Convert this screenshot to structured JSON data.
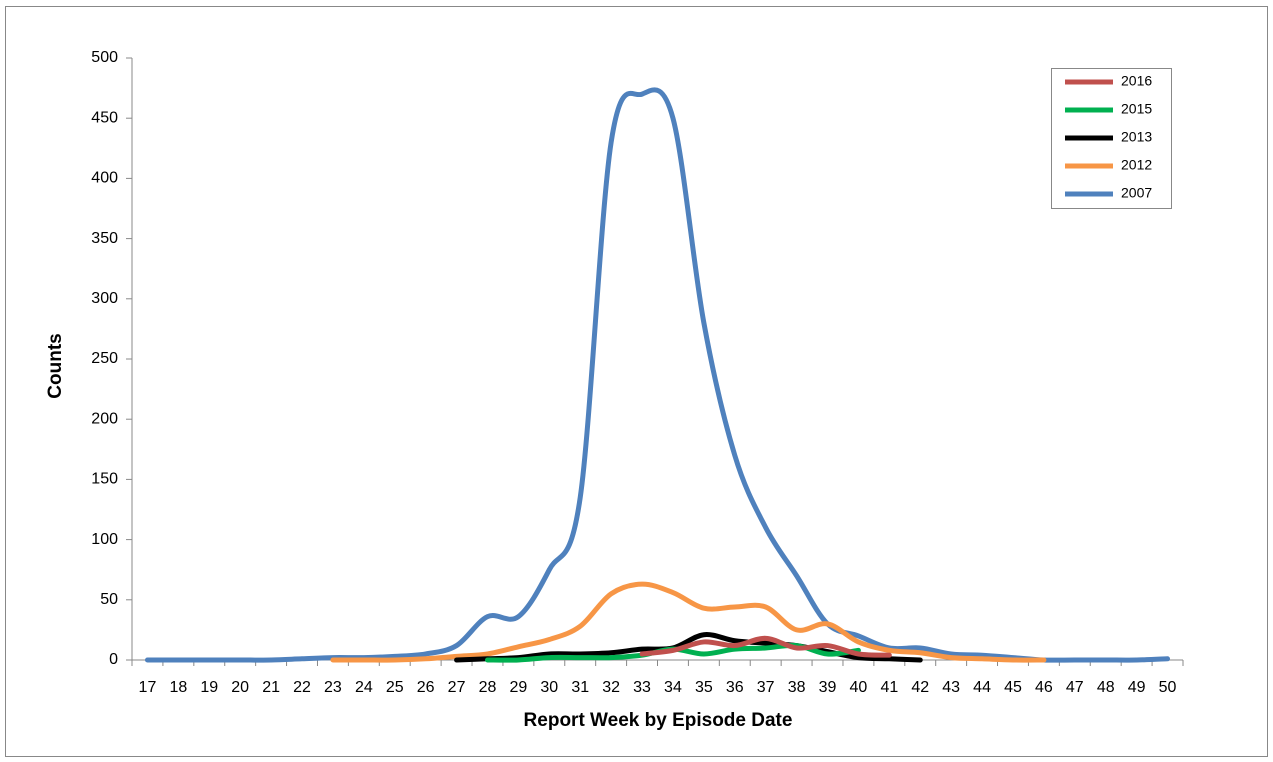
{
  "chart_data": {
    "type": "line",
    "x_label": "Report Week by Episode Date",
    "y_label": "Counts",
    "categories": [
      "17",
      "18",
      "19",
      "20",
      "21",
      "22",
      "23",
      "24",
      "25",
      "26",
      "27",
      "28",
      "29",
      "30",
      "31",
      "32",
      "33",
      "34",
      "35",
      "36",
      "37",
      "38",
      "39",
      "40",
      "41",
      "42",
      "43",
      "44",
      "45",
      "46",
      "47",
      "48",
      "49",
      "50"
    ],
    "series": [
      {
        "name": "2016",
        "color": "#c0504d",
        "values": [
          null,
          null,
          null,
          null,
          null,
          null,
          null,
          null,
          null,
          null,
          null,
          null,
          null,
          null,
          null,
          null,
          5,
          8,
          15,
          12,
          18,
          10,
          12,
          5,
          4,
          null,
          null,
          null,
          null,
          null,
          null,
          null,
          null,
          null
        ]
      },
      {
        "name": "2015",
        "color": "#00b050",
        "values": [
          null,
          null,
          null,
          null,
          null,
          null,
          null,
          null,
          null,
          null,
          null,
          0,
          0,
          2,
          2,
          2,
          4,
          9,
          5,
          9,
          10,
          12,
          5,
          8,
          null,
          null,
          null,
          null,
          null,
          null,
          null,
          null,
          null,
          null
        ]
      },
      {
        "name": "2013",
        "color": "#000000",
        "values": [
          null,
          null,
          null,
          null,
          null,
          null,
          null,
          null,
          null,
          null,
          0,
          1,
          2,
          5,
          5,
          6,
          9,
          10,
          21,
          16,
          14,
          12,
          7,
          2,
          1,
          0,
          null,
          null,
          null,
          null,
          null,
          null,
          null,
          null
        ]
      },
      {
        "name": "2012",
        "color": "#f79646",
        "values": [
          null,
          null,
          null,
          null,
          null,
          null,
          0,
          0,
          0,
          1,
          3,
          5,
          11,
          17,
          28,
          55,
          63,
          56,
          43,
          44,
          44,
          25,
          30,
          15,
          8,
          6,
          2,
          1,
          0,
          0,
          null,
          null,
          null,
          null
        ]
      },
      {
        "name": "2007",
        "color": "#4f81bd",
        "values": [
          0,
          0,
          0,
          0,
          0,
          1,
          2,
          2,
          3,
          5,
          12,
          36,
          36,
          75,
          135,
          430,
          470,
          450,
          280,
          170,
          110,
          70,
          30,
          20,
          10,
          10,
          5,
          4,
          2,
          0,
          0,
          0,
          0,
          1
        ]
      }
    ],
    "ylim": [
      0,
      500
    ],
    "yticks": [
      0,
      50,
      100,
      150,
      200,
      250,
      300,
      350,
      400,
      450,
      500
    ],
    "grid": false,
    "legend": "upper right",
    "smooth": true
  }
}
